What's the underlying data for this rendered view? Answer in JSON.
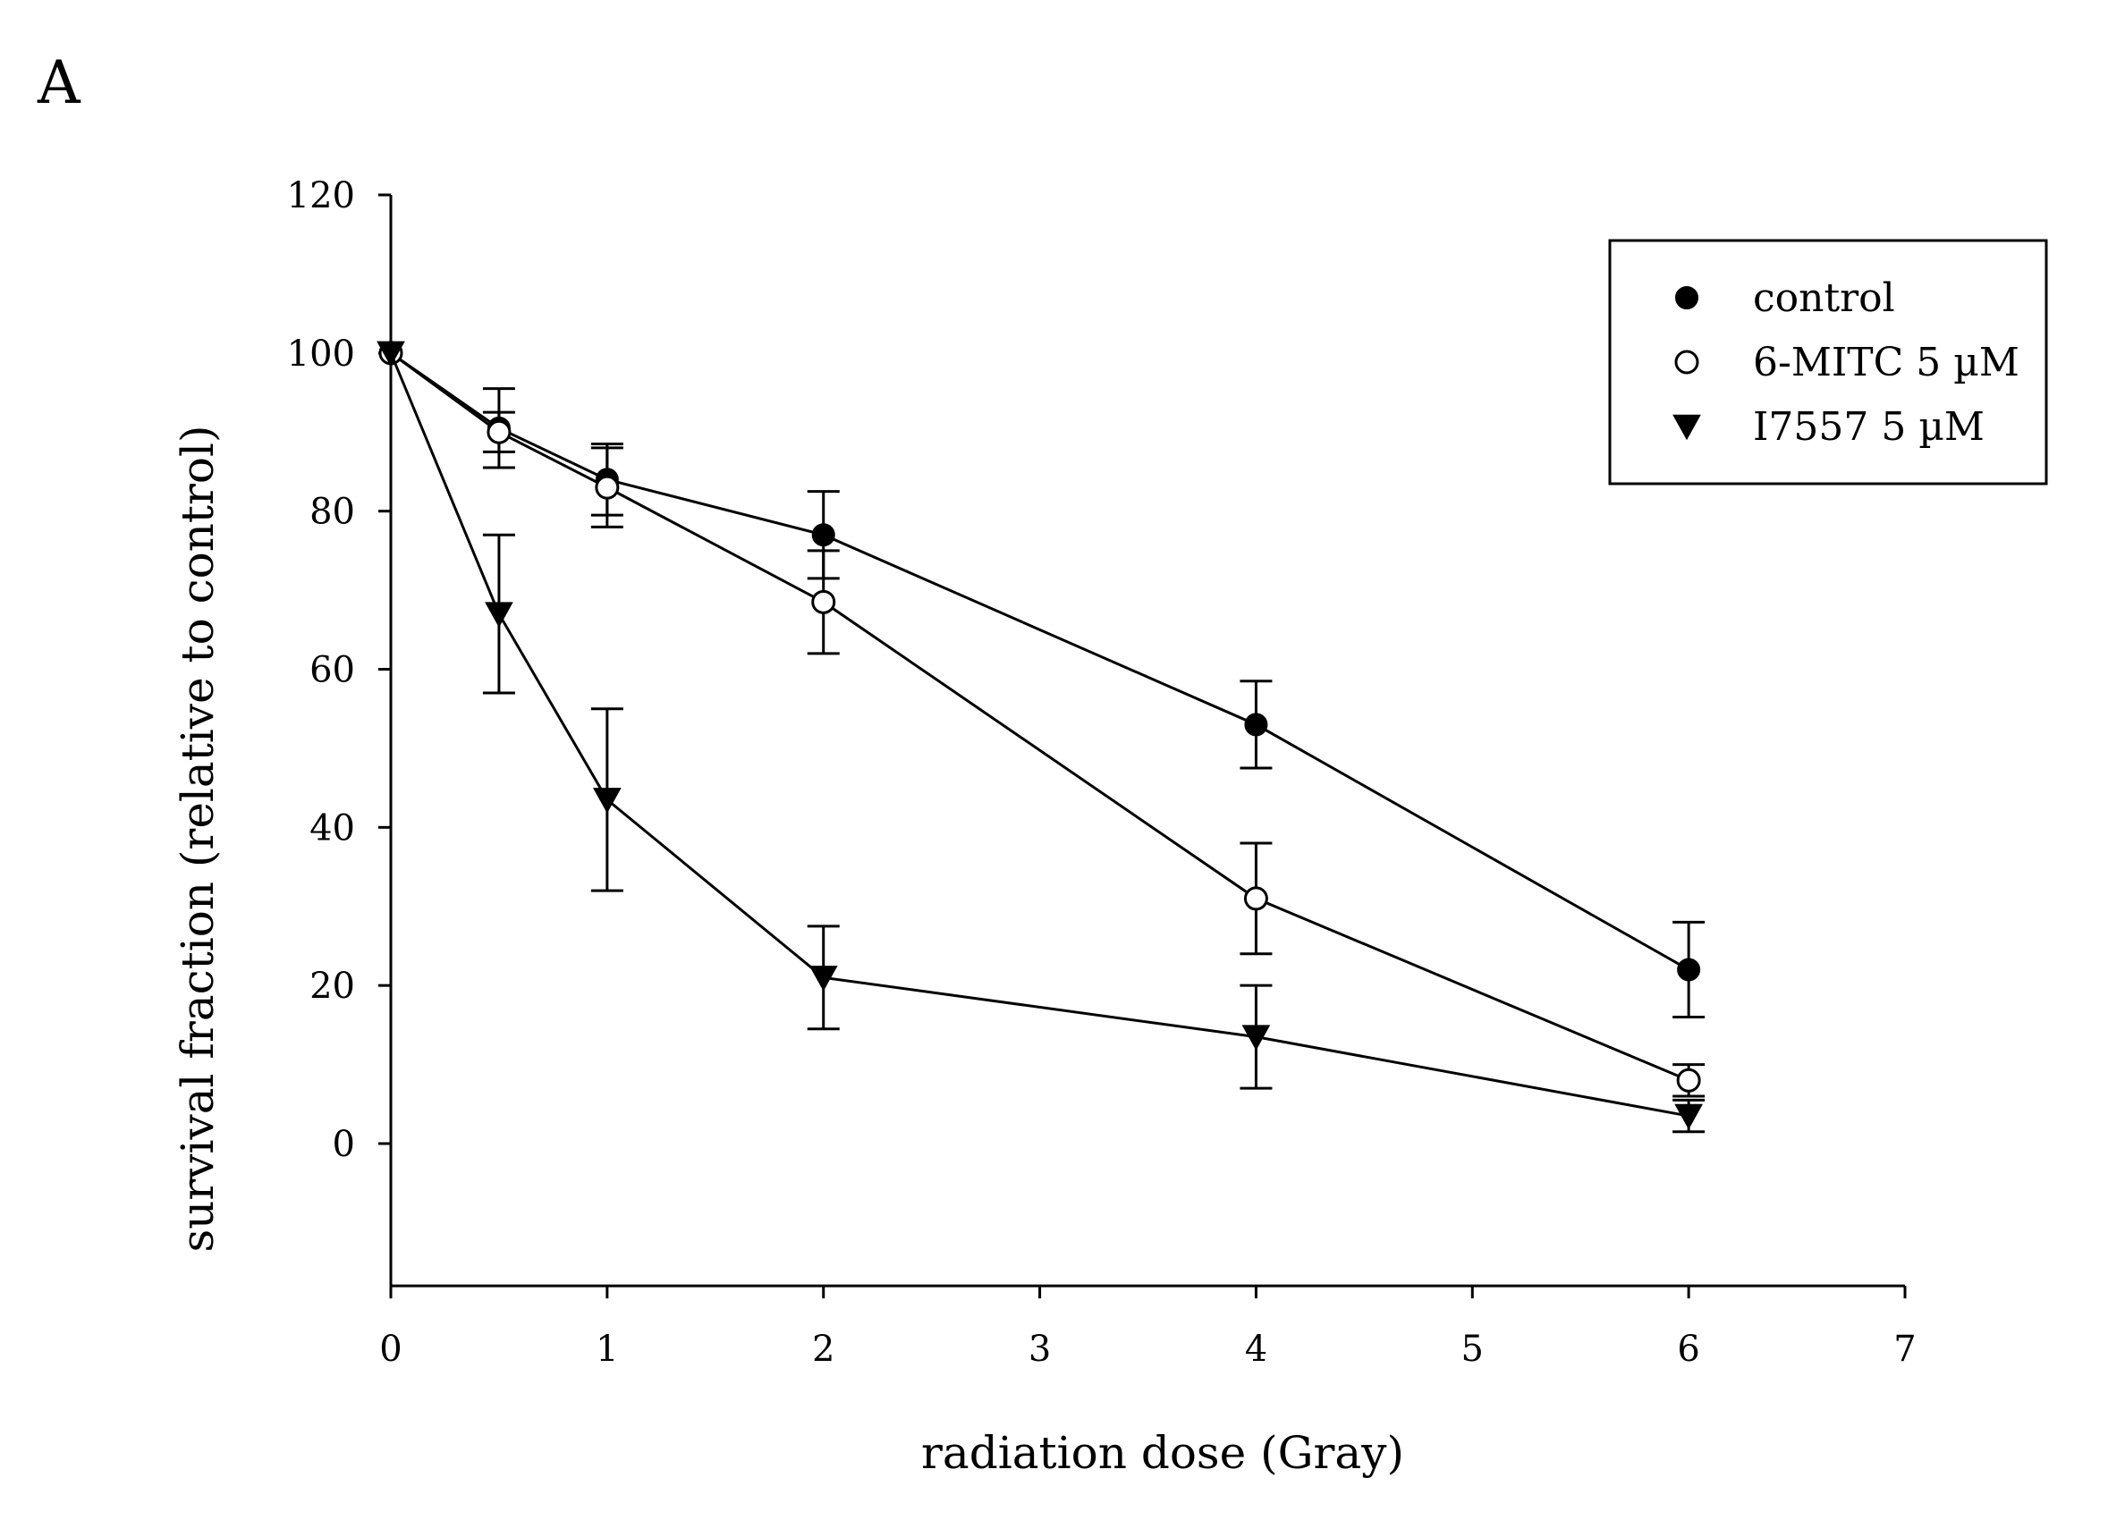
{
  "panel_label": "A",
  "chart_data": {
    "type": "line",
    "title": "",
    "xlabel": "radiation dose (Gray)",
    "ylabel": "survival fraction (relative to control)",
    "xlim": [
      0,
      7
    ],
    "ylim": [
      -18,
      120
    ],
    "xticks": [
      0,
      1,
      2,
      3,
      4,
      5,
      6,
      7
    ],
    "yticks": [
      0,
      20,
      40,
      60,
      80,
      100,
      120
    ],
    "grid": false,
    "legend_position": "top-right",
    "error_bars": true,
    "series": [
      {
        "name": "control",
        "marker": "filled-circle",
        "x": [
          0,
          0.5,
          1,
          2,
          4,
          6
        ],
        "y": [
          100,
          90.5,
          84,
          77,
          53,
          22
        ],
        "err": [
          0,
          5,
          4.5,
          5.5,
          5.5,
          6
        ]
      },
      {
        "name": "6-MITC 5 µM",
        "marker": "open-circle",
        "x": [
          0,
          0.5,
          1,
          2,
          4,
          6
        ],
        "y": [
          100,
          90,
          83,
          68.5,
          31,
          8
        ],
        "err": [
          0,
          2.5,
          5,
          6.5,
          7,
          2
        ]
      },
      {
        "name": "I7557 5 µM",
        "marker": "filled-triangle-down",
        "x": [
          0,
          0.5,
          1,
          2,
          4,
          6
        ],
        "y": [
          100,
          67,
          43.5,
          21,
          13.5,
          3.5
        ],
        "err": [
          0,
          10,
          11.5,
          6.5,
          6.5,
          2
        ]
      }
    ]
  }
}
